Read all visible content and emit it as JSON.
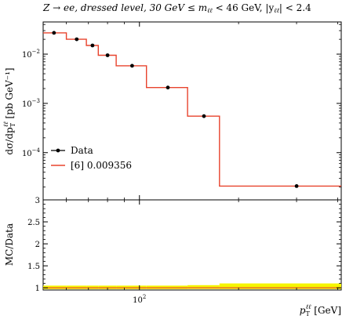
{
  "chart_data": [
    {
      "type": "line",
      "panel": "main",
      "title_main": "Z → ee, dressed level, 30 GeV ≤ m",
      "title_sub": "ℓℓ",
      "title_mid": " < 46 GeV, |y",
      "title_sub2": "ℓℓ",
      "title_end": "| < 2.4",
      "ylabel": "dσ/dp_T^ℓℓ [pb GeV⁻¹]",
      "ylabel_main": "dσ/dp",
      "ylabel_sup": "ℓℓ",
      "ylabel_sub": "T",
      "ylabel_end": " [pb GeV⁻¹]",
      "xscale": "log",
      "yscale": "log",
      "xlim": [
        51,
        410
      ],
      "ylim": [
        1.1e-05,
        0.045
      ],
      "y_ticks": [
        {
          "value": 0.01,
          "label_base": "10",
          "label_exp": "−2"
        },
        {
          "value": 0.001,
          "label_base": "10",
          "label_exp": "−3"
        },
        {
          "value": 0.0001,
          "label_base": "10",
          "label_exp": "−4"
        }
      ],
      "legend_position": "lower-left",
      "series": [
        {
          "name": "Data",
          "style": "markers",
          "color": "#000000",
          "x": [
            55,
            64.5,
            72,
            80,
            95,
            122,
            157,
            300
          ],
          "y": [
            0.027,
            0.02,
            0.015,
            0.0095,
            0.0058,
            0.0021,
            0.00055,
            2.1e-05
          ]
        },
        {
          "name": "[6] 0.009356",
          "style": "step",
          "color": "#e8432d",
          "bin_edges": [
            51,
            60,
            69,
            75,
            85,
            105,
            140,
            175,
            410
          ],
          "values": [
            0.027,
            0.02,
            0.015,
            0.0095,
            0.0058,
            0.0021,
            0.00055,
            2.1e-05
          ]
        }
      ]
    },
    {
      "type": "area",
      "panel": "ratio",
      "ylabel": "MC/Data",
      "xlabel_main": "p",
      "xlabel_sup": "ℓℓ",
      "xlabel_sub": "T",
      "xlabel_end": " [GeV]",
      "xscale": "log",
      "xlim": [
        51,
        410
      ],
      "ylim": [
        0.95,
        3.0
      ],
      "y_ticks": [
        {
          "value": 1,
          "label": "1"
        },
        {
          "value": 1.5,
          "label": "1.5"
        },
        {
          "value": 2,
          "label": "2"
        },
        {
          "value": 2.5,
          "label": "2.5"
        },
        {
          "value": 3,
          "label": "3"
        }
      ],
      "x_ticks": [
        {
          "value": 100,
          "label_base": "10",
          "label_exp": "2"
        }
      ],
      "band_color": "#f5f500",
      "band": {
        "bin_edges": [
          51,
          60,
          69,
          75,
          85,
          105,
          140,
          175,
          410
        ],
        "low": [
          0.97,
          0.97,
          0.97,
          0.97,
          0.97,
          0.97,
          0.97,
          0.97
        ],
        "high": [
          1.05,
          1.05,
          1.05,
          1.05,
          1.05,
          1.05,
          1.06,
          1.1
        ]
      },
      "ratio_line": [
        1,
        1,
        1,
        1,
        1,
        1,
        1,
        1
      ]
    }
  ]
}
